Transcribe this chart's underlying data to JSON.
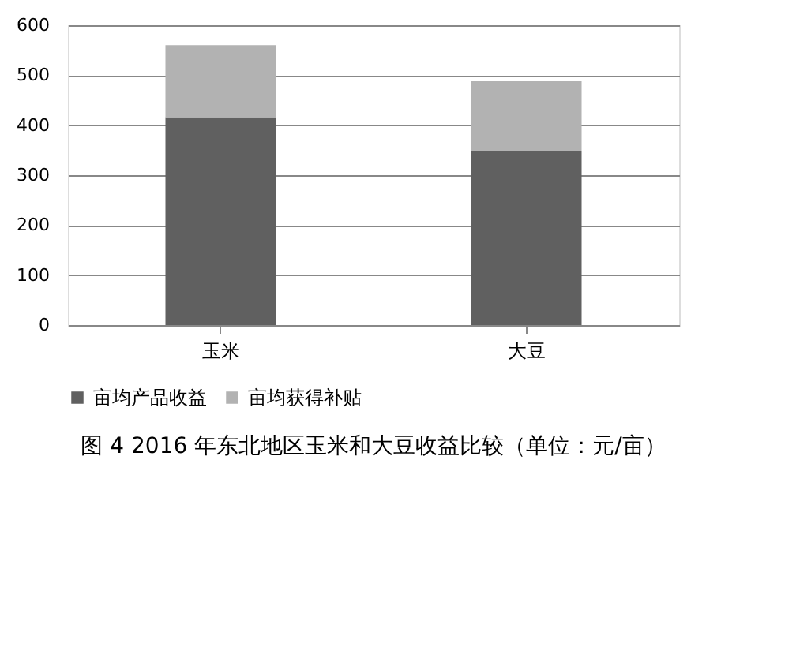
{
  "chart_data": {
    "type": "bar",
    "stacked": true,
    "title": "图 4 2016 年东北地区玉米和大豆收益比较（单位：元/亩）",
    "categories": [
      "玉米",
      "大豆"
    ],
    "series": [
      {
        "name": "亩均产品收益",
        "color": "#606060",
        "values": [
          416,
          348
        ]
      },
      {
        "name": "亩均获得补贴",
        "color": "#b2b2b2",
        "values": [
          144,
          140
        ]
      }
    ],
    "ylim": [
      0,
      600
    ],
    "yticks": [
      0,
      100,
      200,
      300,
      400,
      500,
      600
    ],
    "grid": "y",
    "legend": "bottom"
  }
}
